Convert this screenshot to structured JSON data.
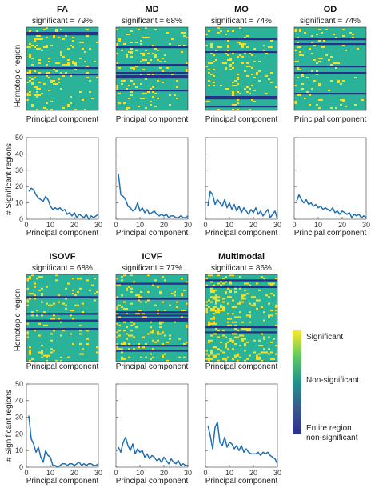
{
  "figure_labels": {
    "heatmap_ylabel": "Homotopic region",
    "line_ylabel": "# Significant regions",
    "xlabel": "Principal component"
  },
  "colorbar": {
    "top_label": "Significant",
    "mid_label": "Non-significant",
    "bottom_label_1": "Entire region",
    "bottom_label_2": "non-significant",
    "colors": [
      "#fde725",
      "#5ec962",
      "#21918c",
      "#3b528b",
      "#2b2f8f"
    ]
  },
  "heatmap_colors": {
    "background": "#2bb39a",
    "significant": "#f5e027",
    "entire_nonsignificant": "#27318a"
  },
  "chart_data": [
    {
      "type": "line",
      "title": "FA",
      "subtitle": "significant = 79%",
      "xlabel": "Principal component",
      "ylabel": "# Significant regions",
      "xlim": [
        0,
        30
      ],
      "ylim": [
        0,
        50
      ],
      "xticks": [
        0,
        10,
        20,
        30
      ],
      "yticks": [
        0,
        10,
        20,
        30,
        40,
        50
      ],
      "x": [
        1,
        2,
        3,
        4,
        5,
        6,
        7,
        8,
        9,
        10,
        11,
        12,
        13,
        14,
        15,
        16,
        17,
        18,
        19,
        20,
        21,
        22,
        23,
        24,
        25,
        26,
        27,
        28,
        29,
        30
      ],
      "values": [
        17,
        19,
        18,
        15,
        13,
        12,
        11,
        14,
        12,
        8,
        6,
        7,
        6,
        7,
        5,
        6,
        3,
        4,
        2,
        4,
        1,
        3,
        2,
        1,
        3,
        0,
        2,
        1,
        2,
        3
      ]
    },
    {
      "type": "line",
      "title": "MD",
      "subtitle": "significant = 68%",
      "xlabel": "Principal component",
      "ylabel": "",
      "xlim": [
        0,
        30
      ],
      "ylim": [
        0,
        50
      ],
      "xticks": [
        0,
        10,
        20,
        30
      ],
      "yticks": [
        0,
        10,
        20,
        30,
        40,
        50
      ],
      "x": [
        1,
        2,
        3,
        4,
        5,
        6,
        7,
        8,
        9,
        10,
        11,
        12,
        13,
        14,
        15,
        16,
        17,
        18,
        19,
        20,
        21,
        22,
        23,
        24,
        25,
        26,
        27,
        28,
        29,
        30
      ],
      "values": [
        28,
        15,
        14,
        12,
        8,
        7,
        5,
        6,
        10,
        5,
        7,
        4,
        6,
        3,
        4,
        5,
        3,
        2,
        3,
        2,
        3,
        1,
        2,
        2,
        1,
        1,
        2,
        1,
        1,
        2
      ]
    },
    {
      "type": "line",
      "title": "MO",
      "subtitle": "significant = 74%",
      "xlabel": "Principal component",
      "ylabel": "",
      "xlim": [
        0,
        30
      ],
      "ylim": [
        0,
        50
      ],
      "xticks": [
        0,
        10,
        20,
        30
      ],
      "yticks": [
        0,
        10,
        20,
        30,
        40,
        50
      ],
      "x": [
        1,
        2,
        3,
        4,
        5,
        6,
        7,
        8,
        9,
        10,
        11,
        12,
        13,
        14,
        15,
        16,
        17,
        18,
        19,
        20,
        21,
        22,
        23,
        24,
        25,
        26,
        27,
        28,
        29,
        30
      ],
      "values": [
        8,
        17,
        15,
        9,
        12,
        10,
        8,
        12,
        7,
        10,
        6,
        9,
        5,
        8,
        4,
        7,
        5,
        3,
        6,
        4,
        7,
        3,
        5,
        2,
        4,
        6,
        1,
        3,
        5,
        0
      ]
    },
    {
      "type": "line",
      "title": "OD",
      "subtitle": "significant = 74%",
      "xlabel": "Principal component",
      "ylabel": "",
      "xlim": [
        0,
        30
      ],
      "ylim": [
        0,
        50
      ],
      "xticks": [
        0,
        10,
        20,
        30
      ],
      "yticks": [
        0,
        10,
        20,
        30,
        40,
        50
      ],
      "x": [
        1,
        2,
        3,
        4,
        5,
        6,
        7,
        8,
        9,
        10,
        11,
        12,
        13,
        14,
        15,
        16,
        17,
        18,
        19,
        20,
        21,
        22,
        23,
        24,
        25,
        26,
        27,
        28,
        29,
        30
      ],
      "values": [
        11,
        15,
        12,
        10,
        12,
        9,
        10,
        8,
        9,
        7,
        8,
        6,
        7,
        6,
        5,
        7,
        4,
        5,
        3,
        5,
        4,
        3,
        4,
        1,
        3,
        2,
        3,
        1,
        2,
        1
      ]
    },
    {
      "type": "line",
      "title": "ISOVF",
      "subtitle": "significant = 68%",
      "xlabel": "Principal component",
      "ylabel": "# Significant regions",
      "xlim": [
        0,
        30
      ],
      "ylim": [
        0,
        50
      ],
      "xticks": [
        0,
        10,
        20,
        30
      ],
      "yticks": [
        0,
        10,
        20,
        30,
        40,
        50
      ],
      "x": [
        1,
        2,
        3,
        4,
        5,
        6,
        7,
        8,
        9,
        10,
        11,
        12,
        13,
        14,
        15,
        16,
        17,
        18,
        19,
        20,
        21,
        22,
        23,
        24,
        25,
        26,
        27,
        28,
        29,
        30
      ],
      "values": [
        31,
        17,
        14,
        9,
        12,
        6,
        3,
        10,
        7,
        6,
        1,
        1,
        0,
        1,
        2,
        2,
        1,
        2,
        2,
        1,
        2,
        3,
        1,
        2,
        1,
        2,
        2,
        1,
        1,
        2
      ]
    },
    {
      "type": "line",
      "title": "ICVF",
      "subtitle": "significant = 77%",
      "xlabel": "Principal component",
      "ylabel": "",
      "xlim": [
        0,
        30
      ],
      "ylim": [
        0,
        50
      ],
      "xticks": [
        0,
        10,
        20,
        30
      ],
      "yticks": [
        0,
        10,
        20,
        30,
        40,
        50
      ],
      "x": [
        1,
        2,
        3,
        4,
        5,
        6,
        7,
        8,
        9,
        10,
        11,
        12,
        13,
        14,
        15,
        16,
        17,
        18,
        19,
        20,
        21,
        22,
        23,
        24,
        25,
        26,
        27,
        28,
        29,
        30
      ],
      "values": [
        12,
        9,
        15,
        18,
        13,
        10,
        14,
        8,
        11,
        9,
        10,
        6,
        8,
        5,
        7,
        6,
        4,
        5,
        3,
        6,
        4,
        2,
        5,
        3,
        2,
        4,
        1,
        2,
        1,
        1
      ]
    },
    {
      "type": "line",
      "title": "Multimodal",
      "subtitle": "significant = 86%",
      "xlabel": "Principal component",
      "ylabel": "",
      "xlim": [
        0,
        30
      ],
      "ylim": [
        0,
        50
      ],
      "xticks": [
        0,
        10,
        20,
        30
      ],
      "yticks": [
        0,
        10,
        20,
        30,
        40,
        50
      ],
      "x": [
        1,
        2,
        3,
        4,
        5,
        6,
        7,
        8,
        9,
        10,
        11,
        12,
        13,
        14,
        15,
        16,
        17,
        18,
        19,
        20,
        21,
        22,
        23,
        24,
        25,
        26,
        27,
        28,
        29,
        30
      ],
      "values": [
        25,
        19,
        11,
        24,
        27,
        15,
        13,
        18,
        12,
        15,
        14,
        11,
        13,
        10,
        13,
        9,
        11,
        9,
        8,
        8,
        8,
        9,
        7,
        9,
        8,
        9,
        7,
        6,
        5,
        2
      ]
    }
  ]
}
